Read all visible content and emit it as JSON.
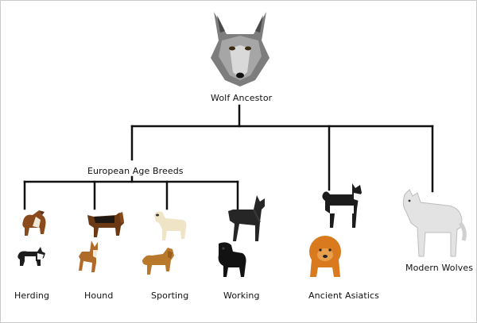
{
  "root": {
    "label": "Wolf Ancestor"
  },
  "branches": {
    "european": "European Age Breeds",
    "asiatic": "Ancient Asiatics",
    "modern": "Modern Wolves"
  },
  "groups": {
    "herding": "Herding",
    "hound": "Hound",
    "sporting": "Sporting",
    "working": "Working"
  },
  "colors": {
    "line": "#111111",
    "wolf_grey": "#8a8a8a",
    "white_wolf": "#e6e6e6",
    "chow": "#d97a1f",
    "black": "#1a1a1a"
  },
  "icons": {
    "root": "wolf-head-icon",
    "herding": [
      "collie-icon",
      "corgi-icon"
    ],
    "hound": [
      "bloodhound-icon",
      "pharaoh-hound-icon"
    ],
    "sporting": [
      "labrador-icon",
      "golden-retriever-icon"
    ],
    "working": [
      "great-dane-icon",
      "water-dog-icon"
    ],
    "asiatic": [
      "akita-icon",
      "chow-chow-icon"
    ],
    "modern": [
      "white-wolf-icon"
    ]
  }
}
